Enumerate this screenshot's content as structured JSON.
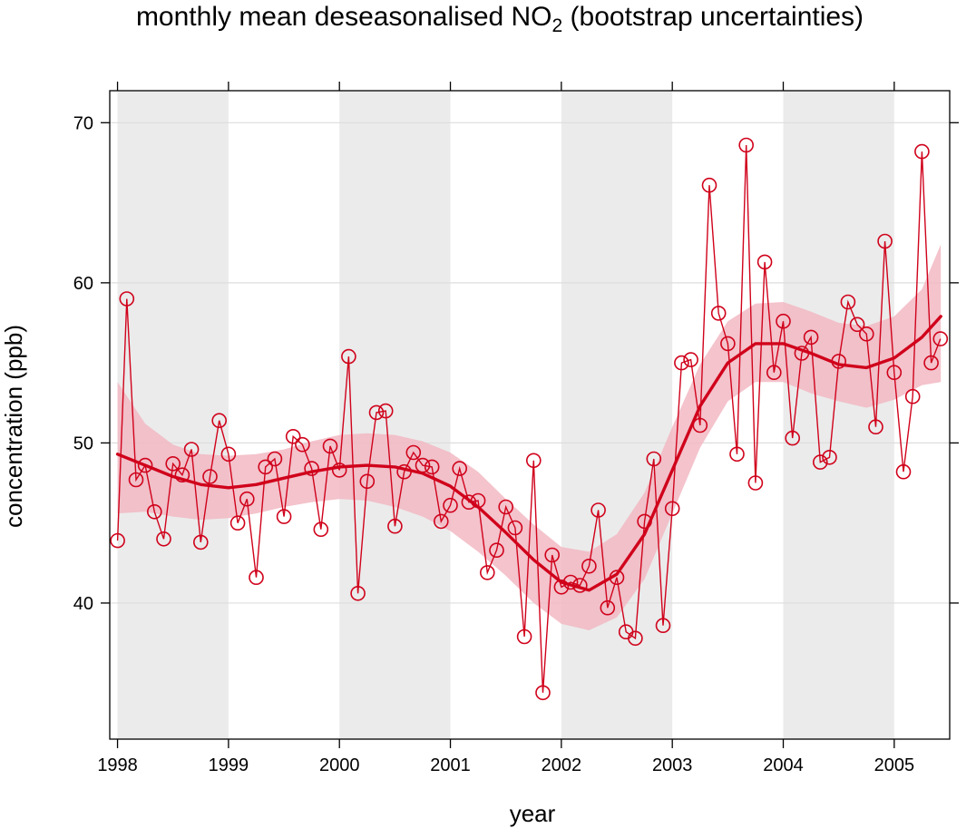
{
  "chart_data": {
    "type": "line",
    "title_parts": {
      "prefix": "monthly mean deseasonalised NO",
      "subscript": "2",
      "suffix": " (bootstrap uncertainties)"
    },
    "xlabel": "year",
    "ylabel": "concentration (ppb)",
    "xlim": [
      1997.93,
      2005.5
    ],
    "ylim": [
      31.5,
      72
    ],
    "x_ticks": [
      1998,
      1999,
      2000,
      2001,
      2002,
      2003,
      2004,
      2005
    ],
    "y_ticks": [
      40,
      50,
      60,
      70
    ],
    "shaded_year_bands": [
      [
        1998,
        1999
      ],
      [
        2000,
        2001
      ],
      [
        2002,
        2003
      ],
      [
        2004,
        2005
      ]
    ],
    "grid": "horizontal",
    "colors": {
      "series": "#d0021b",
      "band": "#f2b8c3",
      "shade": "#ebebeb",
      "grid": "#dddddd"
    },
    "series": [
      {
        "type": "line+points",
        "x_start": 1998.0,
        "x_step_months": 1,
        "values": [
          43.9,
          59.0,
          47.7,
          48.6,
          45.7,
          44.0,
          48.7,
          48.0,
          49.6,
          43.8,
          47.9,
          51.4,
          49.3,
          45.0,
          46.5,
          41.6,
          48.5,
          49.0,
          45.4,
          50.4,
          49.9,
          48.4,
          44.6,
          49.8,
          48.3,
          55.4,
          40.6,
          47.6,
          51.9,
          52.0,
          44.8,
          48.2,
          49.4,
          48.6,
          48.5,
          45.1,
          46.1,
          48.4,
          46.3,
          46.4,
          41.9,
          43.3,
          46.0,
          44.7,
          37.9,
          48.9,
          34.4,
          43.0,
          41.0,
          41.3,
          41.1,
          42.3,
          45.8,
          39.7,
          41.6,
          38.2,
          37.8,
          45.1,
          49.0,
          38.6,
          45.9,
          55.0,
          55.2,
          51.1,
          66.1,
          58.1,
          56.2,
          49.3,
          68.6,
          47.5,
          61.3,
          54.4,
          57.6,
          50.3,
          55.6,
          56.6,
          48.8,
          49.1,
          55.1,
          58.8,
          57.4,
          56.8,
          51.0,
          62.6,
          54.4,
          48.2,
          52.9,
          68.2,
          55.0,
          56.5
        ]
      },
      {
        "type": "smooth",
        "x": [
          1998.0,
          1998.25,
          1998.5,
          1998.75,
          1999.0,
          1999.25,
          1999.5,
          1999.75,
          2000.0,
          2000.25,
          2000.5,
          2000.75,
          2001.0,
          2001.25,
          2001.5,
          2001.75,
          2002.0,
          2002.25,
          2002.5,
          2002.75,
          2003.0,
          2003.25,
          2003.5,
          2003.75,
          2004.0,
          2004.25,
          2004.5,
          2004.75,
          2005.0,
          2005.25,
          2005.42
        ],
        "y": [
          49.3,
          48.6,
          47.9,
          47.4,
          47.2,
          47.4,
          47.8,
          48.2,
          48.5,
          48.6,
          48.5,
          48.1,
          47.3,
          46.0,
          44.4,
          42.7,
          41.3,
          40.8,
          41.8,
          44.3,
          48.3,
          52.3,
          55.0,
          56.2,
          56.2,
          55.6,
          54.9,
          54.7,
          55.3,
          56.6,
          57.9
        ],
        "lower": [
          45.6,
          45.7,
          45.4,
          45.2,
          45.3,
          45.6,
          46.0,
          46.3,
          46.5,
          46.4,
          46.0,
          45.4,
          44.5,
          43.2,
          41.7,
          40.0,
          38.7,
          38.3,
          39.1,
          41.5,
          45.6,
          49.7,
          52.6,
          53.8,
          53.8,
          53.1,
          52.6,
          52.2,
          52.7,
          53.6,
          53.8
        ],
        "upper": [
          53.8,
          51.2,
          49.9,
          49.3,
          49.2,
          49.3,
          49.6,
          50.1,
          50.5,
          50.6,
          50.5,
          50.1,
          49.4,
          48.2,
          46.5,
          44.9,
          43.5,
          43.2,
          44.3,
          46.9,
          51.0,
          54.9,
          57.6,
          58.7,
          58.8,
          58.2,
          57.5,
          57.3,
          57.9,
          59.6,
          62.4
        ]
      }
    ]
  }
}
